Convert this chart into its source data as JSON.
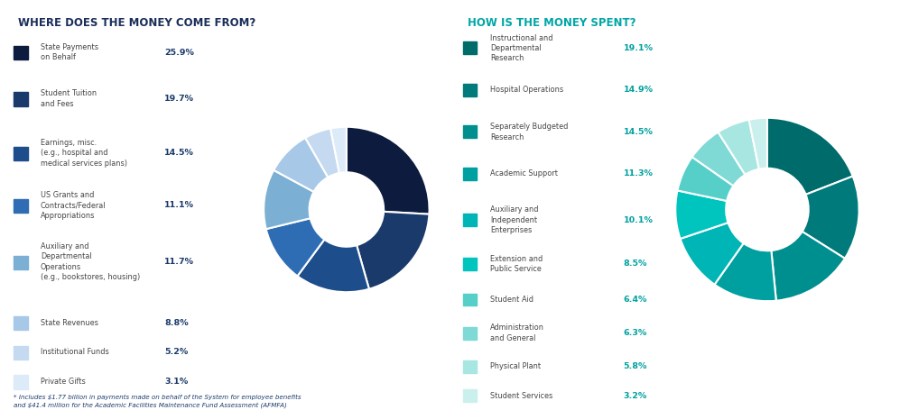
{
  "title1": "WHERE DOES THE MONEY COME FROM?",
  "title2": "HOW IS THE MONEY SPENT?",
  "title1_color": "#1a2e5a",
  "title2_color": "#00a6a6",
  "left_labels": [
    "State Payments\non Behalf",
    "Student Tuition\nand Fees",
    "Earnings, misc.\n(e.g., hospital and\nmedical services plans)",
    "US Grants and\nContracts/Federal\nAppropriations",
    "Auxiliary and\nDepartmental\nOperations\n(e.g., bookstores, housing)",
    "State Revenues",
    "Institutional Funds",
    "Private Gifts"
  ],
  "left_values": [
    25.9,
    19.7,
    14.5,
    11.1,
    11.7,
    8.8,
    5.2,
    3.1
  ],
  "left_colors": [
    "#0d1b3e",
    "#1a3a6b",
    "#1e4d8c",
    "#2e6db4",
    "#7bafd4",
    "#a8c8e8",
    "#c5daf0",
    "#ddeaf8"
  ],
  "right_labels": [
    "Instructional and\nDepartmental\nResearch",
    "Hospital Operations",
    "Separately Budgeted\nResearch",
    "Academic Support",
    "Auxiliary and\nIndependent\nEnterprises",
    "Extension and\nPublic Service",
    "Student Aid",
    "Administration\nand General",
    "Physical Plant",
    "Student Services"
  ],
  "right_values": [
    19.1,
    14.9,
    14.5,
    11.3,
    10.1,
    8.5,
    6.4,
    6.3,
    5.8,
    3.2
  ],
  "right_colors": [
    "#006b6b",
    "#007a7a",
    "#008f8f",
    "#00a0a0",
    "#00b5b5",
    "#00c5be",
    "#55cfc8",
    "#7fd9d4",
    "#a8e6e2",
    "#caf0ee"
  ],
  "left_pct_labels": [
    "25.9%",
    "19.7%",
    "14.5%",
    "11.1%",
    "11.7%",
    "8.8%",
    "5.2%",
    "3.1%"
  ],
  "right_pct_labels": [
    "19.1%",
    "14.9%",
    "14.5%",
    "11.3%",
    "10.1%",
    "8.5%",
    "6.4%",
    "6.3%",
    "5.8%",
    "3.2%"
  ],
  "pct_color_left": "#1a3a6b",
  "pct_color_right": "#00a0a0",
  "footnote": "* Includes $1.77 billion in payments made on behalf of the System for employee benefits\nand $41.4 million for the Academic Facilities Maintenance Fund Assessment (AFMFA)",
  "bg_color": "#ffffff"
}
